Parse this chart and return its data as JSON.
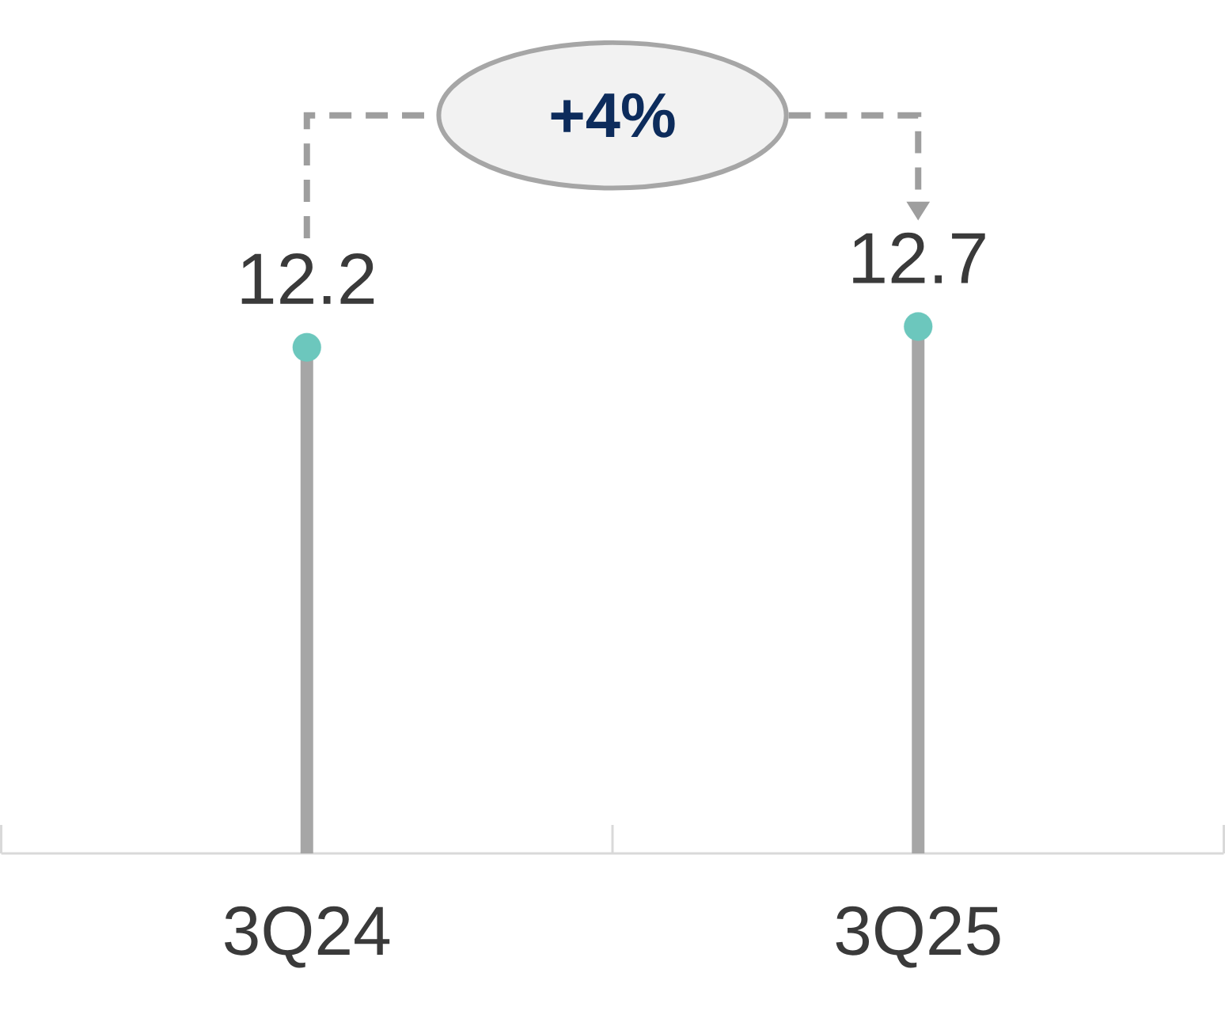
{
  "chart_data": {
    "type": "lollipop",
    "categories": [
      "3Q24",
      "3Q25"
    ],
    "values": [
      12.2,
      12.7
    ],
    "color": "#6cc7bd",
    "data_labels": true,
    "annotations": [
      "+4%"
    ]
  }
}
